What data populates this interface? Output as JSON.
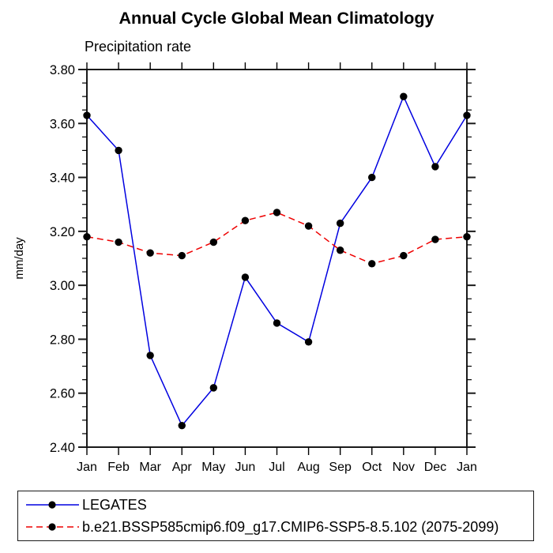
{
  "title": "Annual Cycle Global Mean Climatology",
  "subtitle": "Precipitation rate",
  "ylabel": "mm/day",
  "legend": {
    "items": [
      {
        "label": "LEGATES",
        "color": "#0000e0",
        "style": "solid"
      },
      {
        "label": "b.e21.BSSP585cmip6.f09_g17.CMIP6-SSP5-8.5.102 (2075-2099)",
        "color": "#ee0000",
        "style": "dashed"
      }
    ]
  },
  "chart_data": {
    "type": "line",
    "title": "Annual Cycle Global Mean Climatology",
    "subtitle": "Precipitation rate",
    "ylabel": "mm/day",
    "categories": [
      "Jan",
      "Feb",
      "Mar",
      "Apr",
      "May",
      "Jun",
      "Jul",
      "Aug",
      "Sep",
      "Oct",
      "Nov",
      "Dec",
      "Jan"
    ],
    "series": [
      {
        "name": "LEGATES",
        "color": "#0000e0",
        "style": "solid",
        "marker": "filled-circle",
        "marker_color": "#000000",
        "values": [
          3.63,
          3.5,
          2.74,
          2.48,
          2.62,
          3.03,
          2.86,
          2.79,
          3.23,
          3.4,
          3.7,
          3.44,
          3.63
        ]
      },
      {
        "name": "b.e21.BSSP585cmip6.f09_g17.CMIP6-SSP5-8.5.102 (2075-2099)",
        "color": "#ee0000",
        "style": "dashed",
        "marker": "filled-circle",
        "marker_color": "#000000",
        "values": [
          3.18,
          3.16,
          3.12,
          3.11,
          3.16,
          3.24,
          3.27,
          3.22,
          3.13,
          3.08,
          3.11,
          3.17,
          3.18
        ]
      }
    ],
    "ylim": [
      2.4,
      3.8
    ],
    "ytick_step": 0.2,
    "yminor_step": 0.05,
    "ytick_labels": [
      "2.40",
      "2.60",
      "2.80",
      "3.00",
      "3.20",
      "3.40",
      "3.60",
      "3.80"
    ],
    "grid": false,
    "legend_position": "bottom-left-box",
    "axis_color": "#1a1a1a"
  }
}
